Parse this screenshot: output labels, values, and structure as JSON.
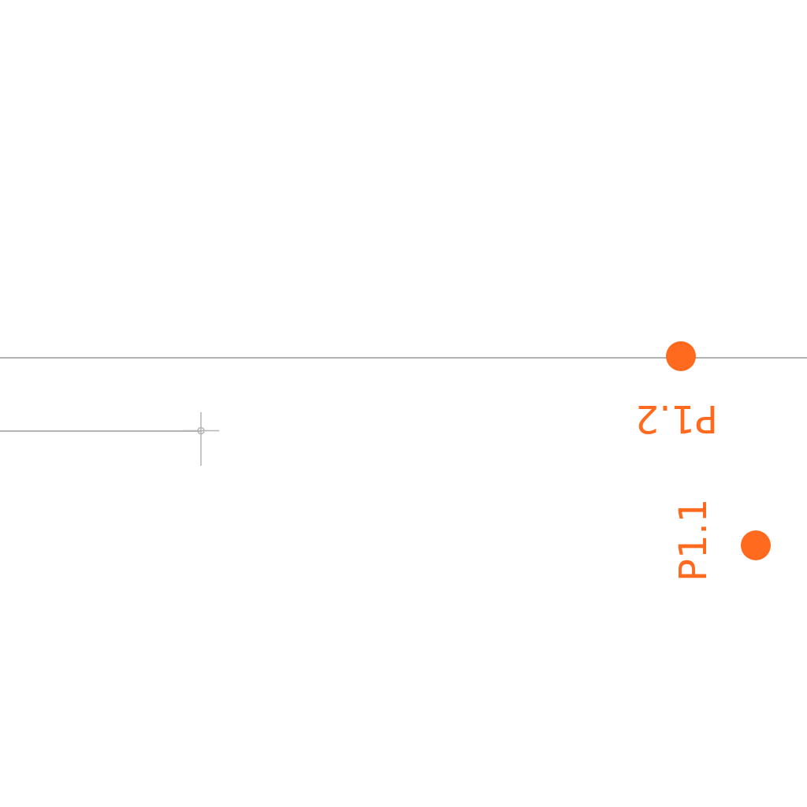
{
  "canvas": {
    "background": "#ffffff",
    "wire_color": "#b4b4b4",
    "pad_color": "#ff6a1f"
  },
  "pins": [
    {
      "label": "P1.2",
      "color": "#ff6a1f",
      "orientation": "rotated-180"
    },
    {
      "label": "P1.1",
      "color": "#ff6a1f",
      "orientation": "rotated-90-ccw"
    }
  ],
  "cursor": {
    "icon": "crosshair-cursor-icon"
  }
}
